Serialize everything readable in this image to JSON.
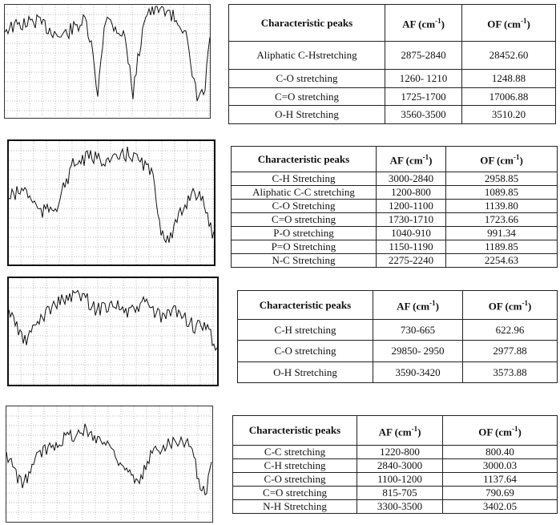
{
  "tables": [
    {
      "header": [
        "Characteristic peaks",
        {
          "text": "AF (cm",
          "sup": "-1",
          "end": ")"
        },
        {
          "text": "OF (cm",
          "sup": "-1",
          "end": ")"
        }
      ],
      "rows": [
        [
          "Aliphatic C-Hstretching",
          "2875-2840",
          "28452.60"
        ],
        [
          "C-O stretching",
          "1260- 1210",
          "1248.88"
        ],
        [
          "C=O stretching",
          "1725-1700",
          "17006.88"
        ],
        [
          "O-H Stretching",
          "3560-3500",
          "3510.20"
        ]
      ]
    },
    {
      "header": [
        "Characteristic peaks",
        {
          "text": "AF (cm",
          "sup": "-1",
          "end": ")"
        },
        {
          "text": "OF (cm",
          "sup": "-1",
          "end": ")"
        }
      ],
      "rows": [
        [
          "C-H Stretching",
          "3000-2840",
          "2958.85"
        ],
        [
          "Aliphatic C-C stretching",
          "1200-800",
          "1089.85"
        ],
        [
          "C-O Stretching",
          "1200-1100",
          "1139.80"
        ],
        [
          "C=O stretching",
          "1730-1710",
          "1723.66"
        ],
        [
          "P-O stretching",
          "1040-910",
          "991.34"
        ],
        [
          "P=O Stretching",
          "1150-1190",
          "1189.85"
        ],
        [
          "N-C Stretching",
          "2275-2240",
          "2254.63"
        ]
      ]
    },
    {
      "header": [
        "Characteristic peaks",
        {
          "text": "AF (cm",
          "sup": "-1",
          "end": ")"
        },
        {
          "text": "OF (cm",
          "sup": "-1",
          "end": ")"
        }
      ],
      "rows": [
        [
          "C-H stretching",
          "730-665",
          "622.96"
        ],
        [
          "C-O stretching",
          "29850- 2950",
          "2977.88"
        ],
        [
          "O-H Stretching",
          "3590-3420",
          "3573.88"
        ]
      ]
    },
    {
      "header": [
        "Characteristic peaks",
        {
          "text": "AF (cm",
          "sup": "-1",
          "end": ")"
        },
        {
          "text": "OF (cm",
          "sup": "-1",
          "end": ")"
        }
      ],
      "rows": [
        [
          "C-C stretching",
          "1220-800",
          "800.40"
        ],
        [
          "C-H stretching",
          "2840-3000",
          "3000.03"
        ],
        [
          "C-O stretching",
          "1100-1200",
          "1137.64"
        ],
        [
          "C=O stretching",
          "815-705",
          "790.69"
        ],
        [
          "N-H Stretching",
          "3300-3500",
          "3402.05"
        ]
      ]
    }
  ]
}
